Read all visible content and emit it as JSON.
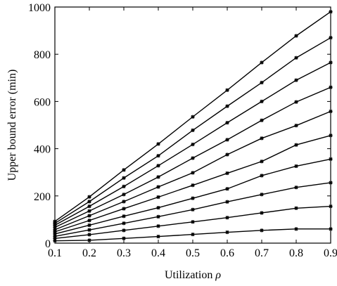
{
  "chart_data": {
    "type": "line",
    "xlabel": "Utilization",
    "xlabel_symbol": "ρ",
    "ylabel": "Upper bound error (min)",
    "xlim": [
      0.1,
      0.9
    ],
    "ylim": [
      0,
      1000
    ],
    "xticks": [
      "0.1",
      "0.2",
      "0.3",
      "0.4",
      "0.5",
      "0.6",
      "0.7",
      "0.8",
      "0.9"
    ],
    "yticks": [
      "0",
      "200",
      "400",
      "600",
      "800",
      "1000"
    ],
    "grid": false,
    "legend": "none",
    "x": [
      0.1,
      0.2,
      0.3,
      0.4,
      0.5,
      0.6,
      0.7,
      0.8,
      0.9
    ],
    "series": [
      {
        "values": [
          10,
          12,
          20,
          28,
          37,
          46,
          54,
          60,
          60
        ]
      },
      {
        "values": [
          20,
          36,
          54,
          72,
          90,
          108,
          128,
          148,
          156
        ]
      },
      {
        "values": [
          29,
          56,
          84,
          112,
          142,
          175,
          206,
          236,
          256
        ]
      },
      {
        "values": [
          39,
          76,
          114,
          150,
          190,
          230,
          286,
          326,
          356
        ]
      },
      {
        "values": [
          48,
          96,
          146,
          195,
          245,
          296,
          346,
          416,
          456
        ]
      },
      {
        "values": [
          57,
          116,
          176,
          238,
          298,
          375,
          444,
          498,
          558
        ]
      },
      {
        "values": [
          67,
          136,
          206,
          280,
          360,
          438,
          520,
          598,
          660
        ]
      },
      {
        "values": [
          76,
          156,
          240,
          328,
          418,
          510,
          600,
          690,
          765
        ]
      },
      {
        "values": [
          84,
          176,
          276,
          370,
          478,
          580,
          680,
          785,
          870
        ]
      },
      {
        "values": [
          92,
          196,
          310,
          420,
          535,
          648,
          765,
          878,
          980
        ]
      }
    ],
    "line_color": "#000000",
    "marker": "asterisk"
  }
}
